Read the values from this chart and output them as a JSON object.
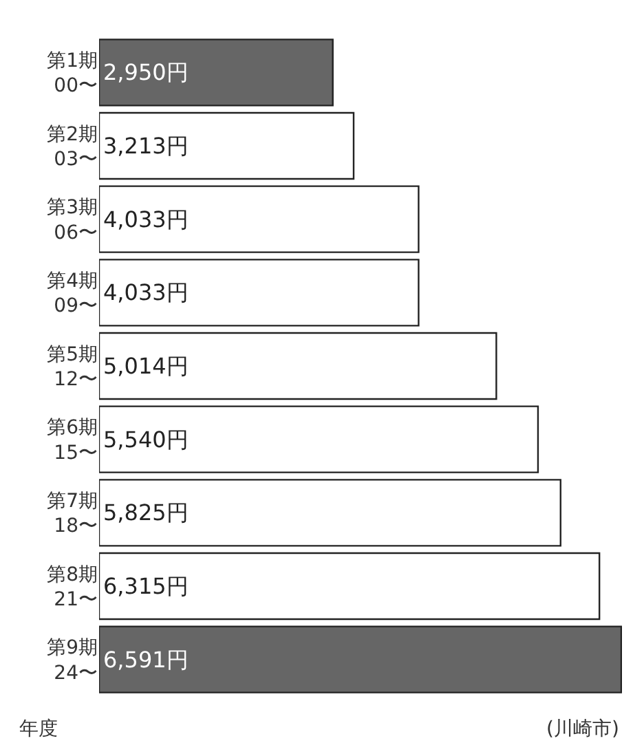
{
  "chart_data": {
    "type": "bar",
    "orientation": "horizontal",
    "categories": [
      "第1期\n00〜",
      "第2期\n03〜",
      "第3期\n06〜",
      "第4期\n09〜",
      "第5期\n12〜",
      "第6期\n15〜",
      "第7期\n18〜",
      "第8期\n21〜",
      "第9期\n24〜"
    ],
    "values": [
      2950,
      3213,
      4033,
      4033,
      5014,
      5540,
      5825,
      6315,
      6591
    ],
    "value_labels": [
      "2,950円",
      "3,213円",
      "4,033円",
      "4,033円",
      "5,014円",
      "5,540円",
      "5,825円",
      "6,315円",
      "6,591円"
    ],
    "colors": [
      "#666666",
      "#ffffff",
      "#ffffff",
      "#ffffff",
      "#ffffff",
      "#ffffff",
      "#ffffff",
      "#ffffff",
      "#666666"
    ],
    "xlim": [
      0,
      6600
    ],
    "tick_labels": "y",
    "legend": false,
    "annotations": [
      "年度",
      "(川崎市)"
    ]
  }
}
